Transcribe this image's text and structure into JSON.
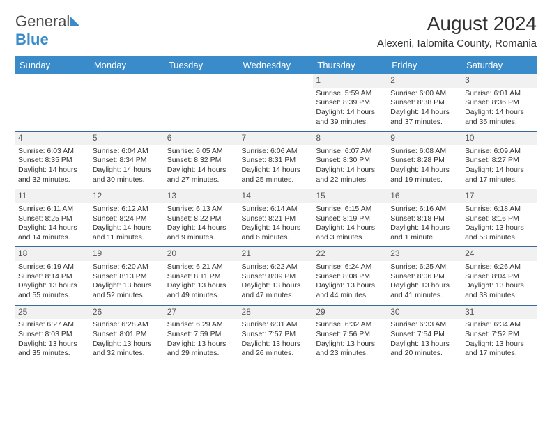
{
  "logo": {
    "part1": "General",
    "part2": "Blue"
  },
  "title": "August 2024",
  "location": "Alexeni, Ialomita County, Romania",
  "header_bg": "#3a8bc9",
  "divider_color": "#3a6a9a",
  "daynum_bg": "#f1f1f1",
  "weekdays": [
    "Sunday",
    "Monday",
    "Tuesday",
    "Wednesday",
    "Thursday",
    "Friday",
    "Saturday"
  ],
  "weeks": [
    [
      {
        "n": "",
        "sr": "",
        "ss": "",
        "dl": ""
      },
      {
        "n": "",
        "sr": "",
        "ss": "",
        "dl": ""
      },
      {
        "n": "",
        "sr": "",
        "ss": "",
        "dl": ""
      },
      {
        "n": "",
        "sr": "",
        "ss": "",
        "dl": ""
      },
      {
        "n": "1",
        "sr": "Sunrise: 5:59 AM",
        "ss": "Sunset: 8:39 PM",
        "dl": "Daylight: 14 hours and 39 minutes."
      },
      {
        "n": "2",
        "sr": "Sunrise: 6:00 AM",
        "ss": "Sunset: 8:38 PM",
        "dl": "Daylight: 14 hours and 37 minutes."
      },
      {
        "n": "3",
        "sr": "Sunrise: 6:01 AM",
        "ss": "Sunset: 8:36 PM",
        "dl": "Daylight: 14 hours and 35 minutes."
      }
    ],
    [
      {
        "n": "4",
        "sr": "Sunrise: 6:03 AM",
        "ss": "Sunset: 8:35 PM",
        "dl": "Daylight: 14 hours and 32 minutes."
      },
      {
        "n": "5",
        "sr": "Sunrise: 6:04 AM",
        "ss": "Sunset: 8:34 PM",
        "dl": "Daylight: 14 hours and 30 minutes."
      },
      {
        "n": "6",
        "sr": "Sunrise: 6:05 AM",
        "ss": "Sunset: 8:32 PM",
        "dl": "Daylight: 14 hours and 27 minutes."
      },
      {
        "n": "7",
        "sr": "Sunrise: 6:06 AM",
        "ss": "Sunset: 8:31 PM",
        "dl": "Daylight: 14 hours and 25 minutes."
      },
      {
        "n": "8",
        "sr": "Sunrise: 6:07 AM",
        "ss": "Sunset: 8:30 PM",
        "dl": "Daylight: 14 hours and 22 minutes."
      },
      {
        "n": "9",
        "sr": "Sunrise: 6:08 AM",
        "ss": "Sunset: 8:28 PM",
        "dl": "Daylight: 14 hours and 19 minutes."
      },
      {
        "n": "10",
        "sr": "Sunrise: 6:09 AM",
        "ss": "Sunset: 8:27 PM",
        "dl": "Daylight: 14 hours and 17 minutes."
      }
    ],
    [
      {
        "n": "11",
        "sr": "Sunrise: 6:11 AM",
        "ss": "Sunset: 8:25 PM",
        "dl": "Daylight: 14 hours and 14 minutes."
      },
      {
        "n": "12",
        "sr": "Sunrise: 6:12 AM",
        "ss": "Sunset: 8:24 PM",
        "dl": "Daylight: 14 hours and 11 minutes."
      },
      {
        "n": "13",
        "sr": "Sunrise: 6:13 AM",
        "ss": "Sunset: 8:22 PM",
        "dl": "Daylight: 14 hours and 9 minutes."
      },
      {
        "n": "14",
        "sr": "Sunrise: 6:14 AM",
        "ss": "Sunset: 8:21 PM",
        "dl": "Daylight: 14 hours and 6 minutes."
      },
      {
        "n": "15",
        "sr": "Sunrise: 6:15 AM",
        "ss": "Sunset: 8:19 PM",
        "dl": "Daylight: 14 hours and 3 minutes."
      },
      {
        "n": "16",
        "sr": "Sunrise: 6:16 AM",
        "ss": "Sunset: 8:18 PM",
        "dl": "Daylight: 14 hours and 1 minute."
      },
      {
        "n": "17",
        "sr": "Sunrise: 6:18 AM",
        "ss": "Sunset: 8:16 PM",
        "dl": "Daylight: 13 hours and 58 minutes."
      }
    ],
    [
      {
        "n": "18",
        "sr": "Sunrise: 6:19 AM",
        "ss": "Sunset: 8:14 PM",
        "dl": "Daylight: 13 hours and 55 minutes."
      },
      {
        "n": "19",
        "sr": "Sunrise: 6:20 AM",
        "ss": "Sunset: 8:13 PM",
        "dl": "Daylight: 13 hours and 52 minutes."
      },
      {
        "n": "20",
        "sr": "Sunrise: 6:21 AM",
        "ss": "Sunset: 8:11 PM",
        "dl": "Daylight: 13 hours and 49 minutes."
      },
      {
        "n": "21",
        "sr": "Sunrise: 6:22 AM",
        "ss": "Sunset: 8:09 PM",
        "dl": "Daylight: 13 hours and 47 minutes."
      },
      {
        "n": "22",
        "sr": "Sunrise: 6:24 AM",
        "ss": "Sunset: 8:08 PM",
        "dl": "Daylight: 13 hours and 44 minutes."
      },
      {
        "n": "23",
        "sr": "Sunrise: 6:25 AM",
        "ss": "Sunset: 8:06 PM",
        "dl": "Daylight: 13 hours and 41 minutes."
      },
      {
        "n": "24",
        "sr": "Sunrise: 6:26 AM",
        "ss": "Sunset: 8:04 PM",
        "dl": "Daylight: 13 hours and 38 minutes."
      }
    ],
    [
      {
        "n": "25",
        "sr": "Sunrise: 6:27 AM",
        "ss": "Sunset: 8:03 PM",
        "dl": "Daylight: 13 hours and 35 minutes."
      },
      {
        "n": "26",
        "sr": "Sunrise: 6:28 AM",
        "ss": "Sunset: 8:01 PM",
        "dl": "Daylight: 13 hours and 32 minutes."
      },
      {
        "n": "27",
        "sr": "Sunrise: 6:29 AM",
        "ss": "Sunset: 7:59 PM",
        "dl": "Daylight: 13 hours and 29 minutes."
      },
      {
        "n": "28",
        "sr": "Sunrise: 6:31 AM",
        "ss": "Sunset: 7:57 PM",
        "dl": "Daylight: 13 hours and 26 minutes."
      },
      {
        "n": "29",
        "sr": "Sunrise: 6:32 AM",
        "ss": "Sunset: 7:56 PM",
        "dl": "Daylight: 13 hours and 23 minutes."
      },
      {
        "n": "30",
        "sr": "Sunrise: 6:33 AM",
        "ss": "Sunset: 7:54 PM",
        "dl": "Daylight: 13 hours and 20 minutes."
      },
      {
        "n": "31",
        "sr": "Sunrise: 6:34 AM",
        "ss": "Sunset: 7:52 PM",
        "dl": "Daylight: 13 hours and 17 minutes."
      }
    ]
  ]
}
